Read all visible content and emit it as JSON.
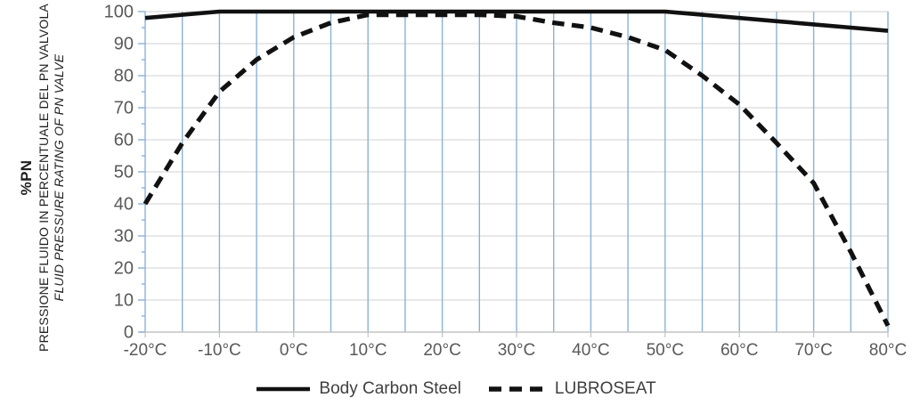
{
  "axis_title": {
    "main": "%PN",
    "italian": "PRESSIONE FLUIDO IN PERCENTUALE DEL PN VALVOLA",
    "english": "FLUID PRESSURE RATING OF PN VALVE"
  },
  "chart_data": {
    "type": "line",
    "x": [
      -20,
      -15,
      -10,
      -5,
      0,
      5,
      10,
      15,
      20,
      25,
      30,
      35,
      40,
      45,
      50,
      55,
      60,
      65,
      70,
      75,
      80
    ],
    "series": [
      {
        "name": "Body Carbon Steel",
        "line_style": "solid",
        "values": [
          98,
          99,
          100,
          100,
          100,
          100,
          100,
          100,
          100,
          100,
          100,
          100,
          100,
          100,
          100,
          99,
          98,
          97,
          96,
          95,
          94
        ]
      },
      {
        "name": "LUBROSEAT",
        "line_style": "dashed",
        "values": [
          40,
          59,
          75,
          85,
          92,
          96.5,
          99,
          99,
          99,
          99,
          98.5,
          96.5,
          95,
          92,
          88,
          80,
          71,
          59,
          46.5,
          25,
          2
        ]
      }
    ],
    "xlabel": "",
    "ylabel": "%PN",
    "xlim": [
      -20,
      80
    ],
    "ylim": [
      0,
      100
    ],
    "x_tick_labels": [
      "-20°C",
      "-10°C",
      "0°C",
      "10°C",
      "20°C",
      "30°C",
      "40°C",
      "50°C",
      "60°C",
      "70°C",
      "80°C"
    ],
    "y_tick_labels": [
      "0",
      "10",
      "20",
      "30",
      "40",
      "50",
      "60",
      "70",
      "80",
      "90",
      "100"
    ],
    "x_major_step": 10,
    "x_minor_step": 5,
    "y_major_step": 10,
    "y_minor_step": 5,
    "grid": "both",
    "legend_position": "bottom",
    "colors": {
      "series_line": "#111111",
      "vertical_grid": "#8ab2d4",
      "horizontal_grid": "#d9d9d9",
      "axis_line": "#c3c3c3",
      "tick_label": "#595959",
      "legend_text": "#3f3f3f"
    }
  }
}
